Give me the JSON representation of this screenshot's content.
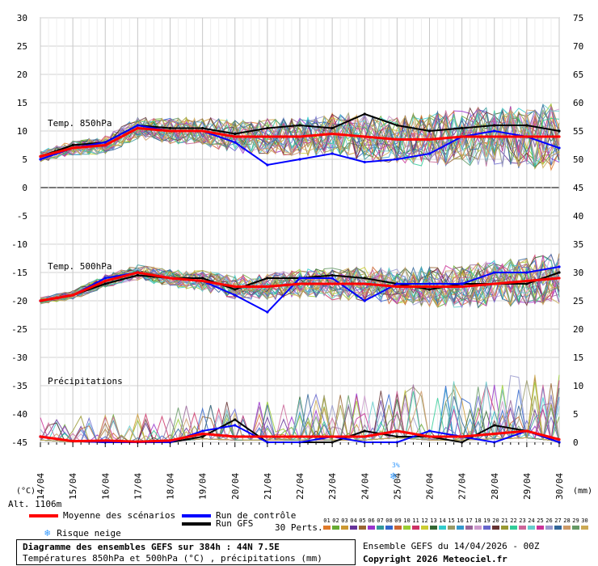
{
  "labels": {
    "unit_left": "(°C)",
    "unit_right": "(mm)",
    "altitude": "Alt. 1106m",
    "temp850": "Temp. 850hPa",
    "temp500": "Temp. 500hPa",
    "precip": "Précipitations",
    "snow_risk_marker": "3%"
  },
  "legend": {
    "mean": "Moyenne des scénarios",
    "control": "Run de contrôle",
    "gfs": "Run GFS",
    "snow": "Risque neige",
    "perts": "30 Perts.",
    "member_numbers": [
      "01",
      "02",
      "03",
      "04",
      "05",
      "06",
      "07",
      "08",
      "09",
      "10",
      "11",
      "12",
      "13",
      "14",
      "15",
      "16",
      "17",
      "18",
      "19",
      "20",
      "21",
      "22",
      "23",
      "24",
      "25",
      "26",
      "27",
      "28",
      "29",
      "30"
    ],
    "colors": {
      "mean": "#ff0000",
      "control": "#0000ff",
      "gfs": "#000000",
      "snow": "#3399ff",
      "members": [
        "#e07a2a",
        "#66aa33",
        "#cc9933",
        "#663399",
        "#996633",
        "#9933cc",
        "#339999",
        "#3366cc",
        "#cc6633",
        "#99cc33",
        "#cc3366",
        "#cccc33",
        "#336633",
        "#33cccc",
        "#999966",
        "#3399cc",
        "#996699",
        "#cc99cc",
        "#6666cc",
        "#663333",
        "#999933",
        "#33cc99",
        "#cc6699",
        "#66cccc",
        "#cc3399",
        "#9999cc",
        "#336699",
        "#cc9966",
        "#669966",
        "#ccaa55"
      ]
    }
  },
  "footer": {
    "title": "Diagramme des ensembles GEFS sur 384h : 44N 7.5E",
    "subtitle": "Températures 850hPa et 500hPa (°C) , précipitations (mm)",
    "run": "Ensemble GEFS du 14/04/2026 - 00Z",
    "copyright": "Copyright 2026 Meteociel.fr"
  },
  "chart_data": {
    "type": "line",
    "x_labels": [
      "14/04",
      "15/04",
      "16/04",
      "17/04",
      "18/04",
      "19/04",
      "20/04",
      "21/04",
      "22/04",
      "23/04",
      "24/04",
      "25/04",
      "26/04",
      "27/04",
      "28/04",
      "29/04",
      "30/04"
    ],
    "y_left_ticks": [
      30,
      25,
      20,
      15,
      10,
      5,
      0,
      -5,
      -10,
      -15,
      -20,
      -25,
      -30,
      -35,
      -40,
      -45
    ],
    "y_right_ticks": [
      75,
      70,
      65,
      60,
      55,
      50,
      45,
      40,
      35,
      30,
      25,
      20,
      15,
      10,
      5,
      0
    ],
    "ylim_left": [
      -45,
      30
    ],
    "ylim_right": [
      0,
      75
    ],
    "grid": true,
    "snow_risk": [
      {
        "date": "25/04",
        "percent": 3
      }
    ],
    "series": [
      {
        "name": "Moyenne des scénarios",
        "group": "temp850",
        "values": [
          5.5,
          7,
          7.5,
          10.5,
          10,
          10,
          9,
          9,
          9,
          9.5,
          9,
          8.5,
          8.5,
          9,
          9,
          9,
          9
        ]
      },
      {
        "name": "Run de contrôle",
        "group": "temp850",
        "values": [
          5,
          7,
          8,
          11,
          10,
          10,
          8,
          4,
          5,
          6,
          4.5,
          5,
          6,
          9,
          10,
          9,
          7
        ]
      },
      {
        "name": "Run GFS",
        "group": "temp850",
        "values": [
          5.5,
          7.5,
          8,
          11,
          10.5,
          10.5,
          9.5,
          10.5,
          11,
          10.5,
          13,
          11,
          10,
          10.5,
          11,
          11,
          10
        ]
      },
      {
        "name": "Moyenne des scénarios",
        "group": "temp500",
        "values": [
          -20,
          -19,
          -16.5,
          -15,
          -16,
          -16.5,
          -17.5,
          -17.5,
          -17,
          -17,
          -17,
          -17.5,
          -17.5,
          -17.5,
          -17,
          -16.5,
          -16
        ]
      },
      {
        "name": "Run de contrôle",
        "group": "temp500",
        "values": [
          -20,
          -19,
          -16,
          -15,
          -16,
          -16.5,
          -19,
          -22,
          -16,
          -16,
          -20,
          -17,
          -17,
          -17,
          -15,
          -15,
          -14
        ]
      },
      {
        "name": "Run GFS",
        "group": "temp500",
        "values": [
          -20,
          -19,
          -17,
          -15.5,
          -16,
          -16,
          -18,
          -16,
          -16,
          -15.5,
          -16,
          -17,
          -18,
          -17,
          -17,
          -17,
          -15
        ]
      },
      {
        "name": "Moyenne des scénarios",
        "group": "precip",
        "values": [
          1,
          0.2,
          0.3,
          0.1,
          0.3,
          1.5,
          1,
          1,
          1,
          1,
          1,
          2,
          1,
          1,
          1.5,
          2,
          0.5
        ]
      },
      {
        "name": "Run de contrôle",
        "group": "precip",
        "values": [
          1,
          0.2,
          0,
          0,
          0,
          2,
          3,
          0,
          0,
          1,
          0,
          0,
          2,
          1,
          0,
          2,
          0
        ]
      },
      {
        "name": "Run GFS",
        "group": "precip",
        "values": [
          1,
          0.2,
          0,
          0,
          0,
          1,
          4,
          0,
          0,
          0,
          2,
          1,
          1,
          0,
          3,
          2,
          0
        ]
      }
    ]
  }
}
